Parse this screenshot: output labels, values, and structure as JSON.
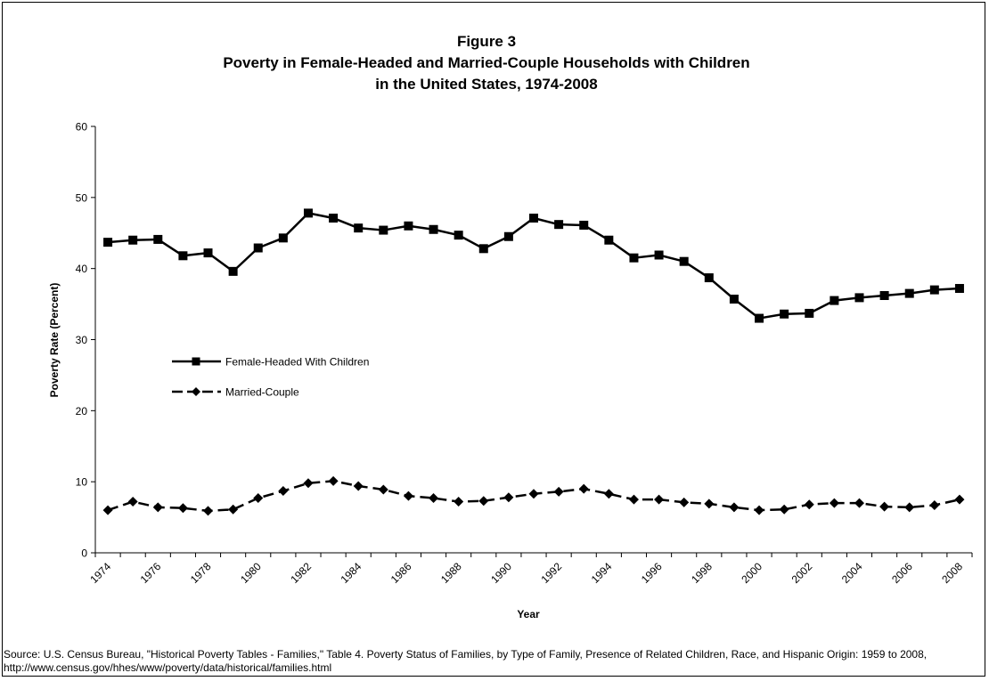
{
  "source": "Source: U.S. Census Bureau, \"Historical Poverty Tables - Families,\" Table 4. Poverty Status of Families, by Type of Family, Presence of Related Children, Race, and Hispanic Origin: 1959 to 2008, http://www.census.gov/hhes/www/poverty/data/historical/families.html",
  "chart_data": {
    "type": "line",
    "title": "Figure 3",
    "subtitle": [
      "Poverty in Female-Headed and Married-Couple Households with Children",
      "in the United States, 1974-2008"
    ],
    "xlabel": "Year",
    "ylabel": "Poverty Rate (Percent)",
    "ylim": [
      0,
      60
    ],
    "yticks": [
      0,
      10,
      20,
      30,
      40,
      50,
      60
    ],
    "xtick_labels": [
      "1974",
      "1976",
      "1978",
      "1980",
      "1982",
      "1984",
      "1986",
      "1988",
      "1990",
      "1992",
      "1994",
      "1996",
      "1998",
      "2000",
      "2002",
      "2004",
      "2006",
      "2008"
    ],
    "x": [
      1974,
      1975,
      1976,
      1977,
      1978,
      1979,
      1980,
      1981,
      1982,
      1983,
      1984,
      1985,
      1986,
      1987,
      1988,
      1989,
      1990,
      1991,
      1992,
      1993,
      1994,
      1995,
      1996,
      1997,
      1998,
      1999,
      2000,
      2001,
      2002,
      2003,
      2004,
      2005,
      2006,
      2007,
      2008
    ],
    "grid": false,
    "legend_position": "center-left",
    "series": [
      {
        "name": "Female-Headed With Children",
        "marker": "square",
        "line_style": "solid",
        "color": "#000000",
        "values": [
          43.7,
          44.0,
          44.1,
          41.8,
          42.2,
          39.6,
          42.9,
          44.3,
          47.8,
          47.1,
          45.7,
          45.4,
          46.0,
          45.5,
          44.7,
          42.8,
          44.5,
          47.1,
          46.2,
          46.1,
          44.0,
          41.5,
          41.9,
          41.0,
          38.7,
          35.7,
          33.0,
          33.6,
          33.7,
          35.5,
          35.9,
          36.2,
          36.5,
          37.0,
          37.2
        ]
      },
      {
        "name": "Married-Couple",
        "marker": "diamond",
        "line_style": "dashed",
        "color": "#000000",
        "values": [
          6.0,
          7.2,
          6.4,
          6.3,
          5.9,
          6.1,
          7.7,
          8.7,
          9.8,
          10.1,
          9.4,
          8.9,
          8.0,
          7.7,
          7.2,
          7.3,
          7.8,
          8.3,
          8.6,
          9.0,
          8.3,
          7.5,
          7.5,
          7.1,
          6.9,
          6.4,
          6.0,
          6.1,
          6.8,
          7.0,
          7.0,
          6.5,
          6.4,
          6.7,
          7.5
        ]
      }
    ]
  }
}
